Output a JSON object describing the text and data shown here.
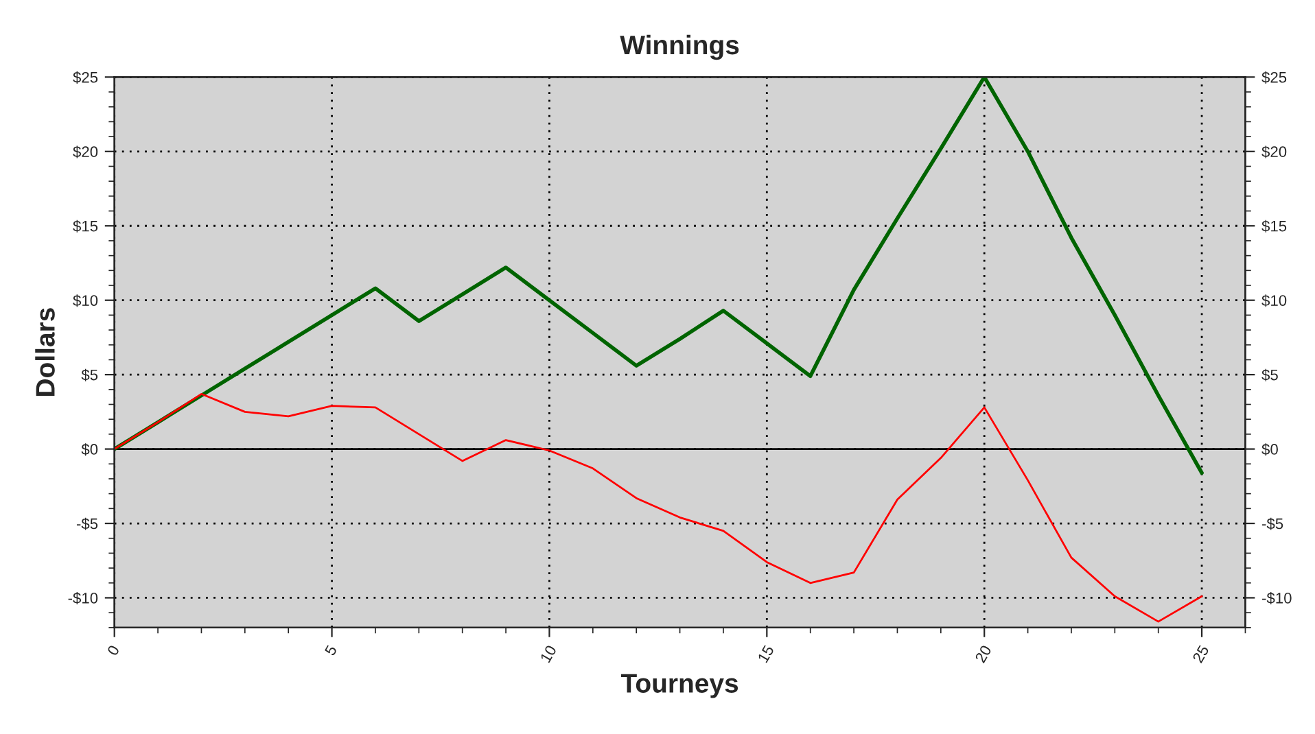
{
  "chart_data": {
    "type": "line",
    "title": "Winnings",
    "xlabel": "Tourneys",
    "ylabel": "Dollars",
    "x": [
      0,
      1,
      2,
      3,
      4,
      5,
      6,
      7,
      8,
      9,
      10,
      11,
      12,
      13,
      14,
      15,
      16,
      17,
      18,
      19,
      20,
      21,
      22,
      23,
      24,
      25
    ],
    "series": [
      {
        "color": "#006400",
        "values": [
          0,
          1.8,
          3.6,
          5.4,
          7.2,
          9,
          10.8,
          8.6,
          10.4,
          12.2,
          10,
          7.8,
          5.6,
          7.4,
          9.3,
          7.1,
          4.9,
          10.7,
          15.5,
          20.2,
          25,
          20,
          14.2,
          9,
          3.6,
          -1.6
        ]
      },
      {
        "color": "#ff0000",
        "values": [
          0,
          1.8,
          3.7,
          2.5,
          2.2,
          2.9,
          2.8,
          1.0,
          -0.8,
          0.6,
          -0.1,
          -1.3,
          -3.3,
          -4.6,
          -5.5,
          -7.6,
          -9.0,
          -8.3,
          -3.4,
          -0.6,
          2.8,
          -2.1,
          -7.3,
          -9.9,
          -11.6,
          -9.9
        ]
      }
    ],
    "xlim": [
      0,
      26
    ],
    "xticks": [
      0,
      5,
      10,
      15,
      20,
      25
    ],
    "ylim": [
      -12,
      25
    ],
    "yticks": [
      {
        "value": -10,
        "label": "-$10"
      },
      {
        "value": -5,
        "label": "-$5"
      },
      {
        "value": 0,
        "label": "$0"
      },
      {
        "value": 5,
        "label": "$5"
      },
      {
        "value": 10,
        "label": "$10"
      },
      {
        "value": 15,
        "label": "$15"
      },
      {
        "value": 20,
        "label": "$20"
      },
      {
        "value": 25,
        "label": "$25"
      }
    ],
    "y2lim": [
      -12,
      25
    ],
    "y2ticks": [
      {
        "value": -10,
        "label": "-$10"
      },
      {
        "value": -5,
        "label": "-$5"
      },
      {
        "value": 0,
        "label": "$0"
      },
      {
        "value": 5,
        "label": "$5"
      },
      {
        "value": 10,
        "label": "$10"
      },
      {
        "value": 15,
        "label": "$15"
      },
      {
        "value": 20,
        "label": "$20"
      },
      {
        "value": 25,
        "label": "$25"
      }
    ],
    "ref_lines": [
      {
        "axis": "y",
        "value": 0,
        "color": "#000000",
        "line_style": "solid"
      }
    ],
    "grid": true,
    "legend": false,
    "marker": "none",
    "line_style": "solid"
  }
}
